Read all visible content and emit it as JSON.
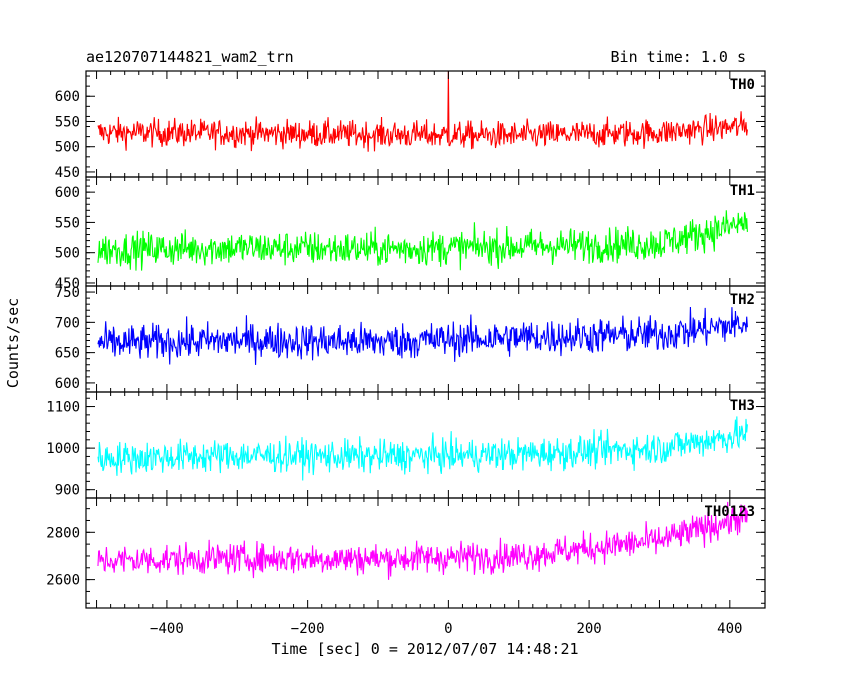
{
  "header": {
    "title": "ae120707144821_wam2_trn",
    "bin_time": "Bin time: 1.0 s"
  },
  "chart_data": {
    "type": "line",
    "xlabel": "Time [sec] 0 = 2012/07/07 14:48:21",
    "ylabel": "Counts/sec",
    "xlim": [
      -515,
      450
    ],
    "x_range": [
      -498,
      425
    ],
    "xticks": [
      -400,
      -200,
      0,
      200,
      400
    ],
    "grid": false,
    "panels": [
      {
        "name": "TH0",
        "color": "#ff0000",
        "ylim": [
          440,
          650
        ],
        "yticks": [
          450,
          500,
          550,
          600
        ],
        "baseline": [
          [
            -498,
            528
          ],
          [
            -300,
            527
          ],
          [
            -100,
            524
          ],
          [
            0,
            523
          ],
          [
            100,
            522
          ],
          [
            300,
            528
          ],
          [
            425,
            541
          ]
        ],
        "noise": 23,
        "spike": {
          "x": 0,
          "y": 650
        }
      },
      {
        "name": "TH1",
        "color": "#00ff00",
        "ylim": [
          445,
          625
        ],
        "yticks": [
          450,
          500,
          550,
          600
        ],
        "baseline": [
          [
            -498,
            505
          ],
          [
            -300,
            508
          ],
          [
            -100,
            506
          ],
          [
            100,
            510
          ],
          [
            300,
            515
          ],
          [
            425,
            550
          ]
        ],
        "noise": 24
      },
      {
        "name": "TH2",
        "color": "#0000ff",
        "ylim": [
          585,
          760
        ],
        "yticks": [
          600,
          650,
          700,
          750
        ],
        "baseline": [
          [
            -498,
            665
          ],
          [
            -300,
            670
          ],
          [
            -100,
            668
          ],
          [
            100,
            675
          ],
          [
            300,
            680
          ],
          [
            425,
            698
          ]
        ],
        "noise": 25
      },
      {
        "name": "TH3",
        "color": "#00ffff",
        "ylim": [
          880,
          1135
        ],
        "yticks": [
          900,
          1000,
          1100
        ],
        "baseline": [
          [
            -498,
            975
          ],
          [
            -300,
            982
          ],
          [
            -100,
            980
          ],
          [
            100,
            985
          ],
          [
            300,
            1000
          ],
          [
            425,
            1035
          ]
        ],
        "noise": 33
      },
      {
        "name": "TH0123",
        "color": "#ff00ff",
        "ylim": [
          2480,
          2945
        ],
        "yticks": [
          2600,
          2800
        ],
        "baseline": [
          [
            -498,
            2680
          ],
          [
            -300,
            2690
          ],
          [
            -100,
            2688
          ],
          [
            100,
            2700
          ],
          [
            300,
            2765
          ],
          [
            425,
            2870
          ]
        ],
        "noise": 55
      }
    ]
  }
}
